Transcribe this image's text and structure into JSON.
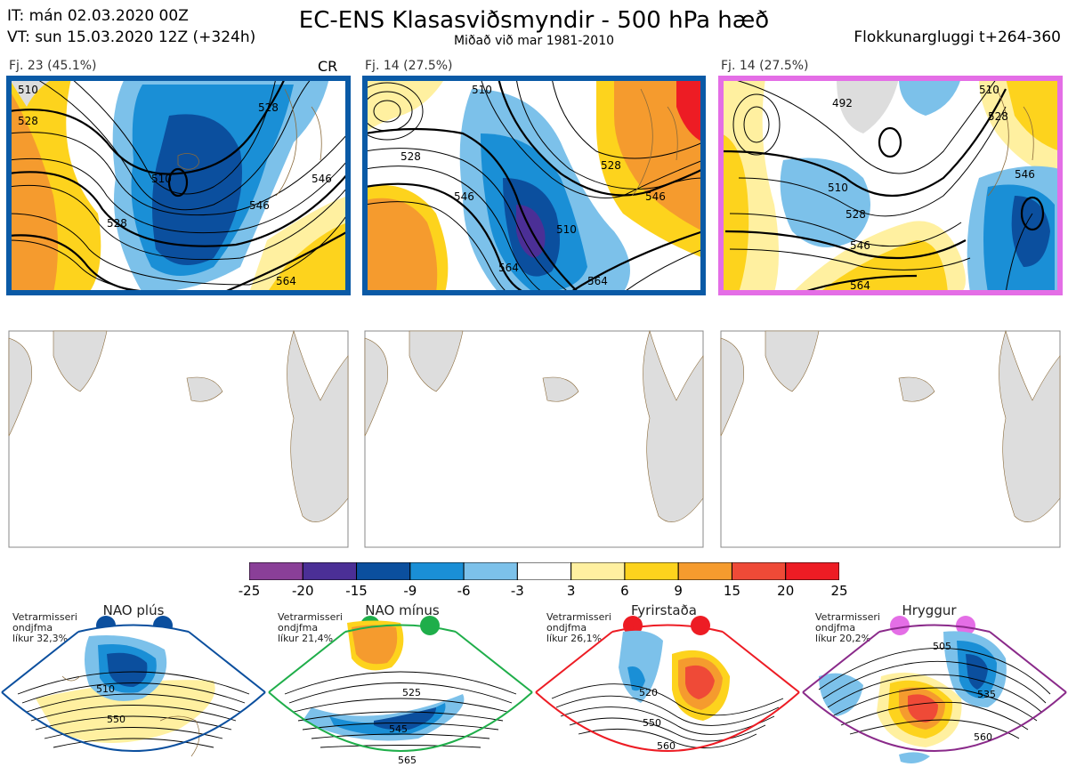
{
  "header": {
    "init_line": "IT: mán 02.03.2020 00Z",
    "valid_line": "VT: sun 15.03.2020 12Z  (+324h)",
    "title": "EC-ENS Klasasviðsmyndir - 500 hPa hæð",
    "subtitle": "Miðað við mar 1981-2010",
    "window": "Flokkunargluggi t+264-360"
  },
  "panels": [
    {
      "label": "Fj. 23 (45.1%)",
      "tag": "CR",
      "border": "#0a5aa6"
    },
    {
      "label": "Fj. 14 (27.5%)",
      "tag": "",
      "border": "#0a5aa6"
    },
    {
      "label": "Fj. 14 (27.5%)",
      "tag": "",
      "border": "#e46ee6"
    }
  ],
  "contour_labels": {
    "p1": [
      "510",
      "528",
      "546",
      "564",
      "528",
      "510",
      "546",
      "528"
    ],
    "p2": [
      "510",
      "528",
      "546",
      "564",
      "510",
      "528",
      "546",
      "564"
    ],
    "p3": [
      "492",
      "510",
      "528",
      "546",
      "564",
      "528",
      "510",
      "546"
    ]
  },
  "colorbar": {
    "ticks": [
      "-25",
      "-20",
      "-15",
      "-9",
      "-6",
      "-3",
      "3",
      "6",
      "9",
      "15",
      "20",
      "25"
    ],
    "colors": [
      "#8a3f98",
      "#4b2f96",
      "#0b4f9e",
      "#1a8fd6",
      "#7cc1ea",
      "#ffffff",
      "#fff0a0",
      "#fdd31d",
      "#f59b2e",
      "#ef4a37",
      "#ed1c24",
      "#a8151b"
    ]
  },
  "climate_regimes": [
    {
      "name": "NAO plús",
      "note1": "Vetrarmisseri",
      "note2": "ondjfma",
      "note3": "líkur 32,3%",
      "dot": "#0b4f9e",
      "frame": "#0b4f9e",
      "labels": [
        "510",
        "550"
      ]
    },
    {
      "name": "NAO mínus",
      "note1": "Vetrarmisseri",
      "note2": "ondjfma",
      "note3": "líkur 21,4%",
      "dot": "#1fae4a",
      "frame": "#1fae4a",
      "labels": [
        "525",
        "545",
        "565"
      ]
    },
    {
      "name": "Fyrirstaða",
      "note1": "Vetrarmisseri",
      "note2": "ondjfma",
      "note3": "líkur 26,1%",
      "dot": "#ed1c24",
      "frame": "#ed1c24",
      "labels": [
        "520",
        "550",
        "560"
      ]
    },
    {
      "name": "Hryggur",
      "note1": "Vetrarmisseri",
      "note2": "ondjfma",
      "note3": "líkur 20,2%",
      "dot": "#e46ee6",
      "frame": "#8a2a8a",
      "labels": [
        "505",
        "535",
        "560"
      ]
    }
  ]
}
